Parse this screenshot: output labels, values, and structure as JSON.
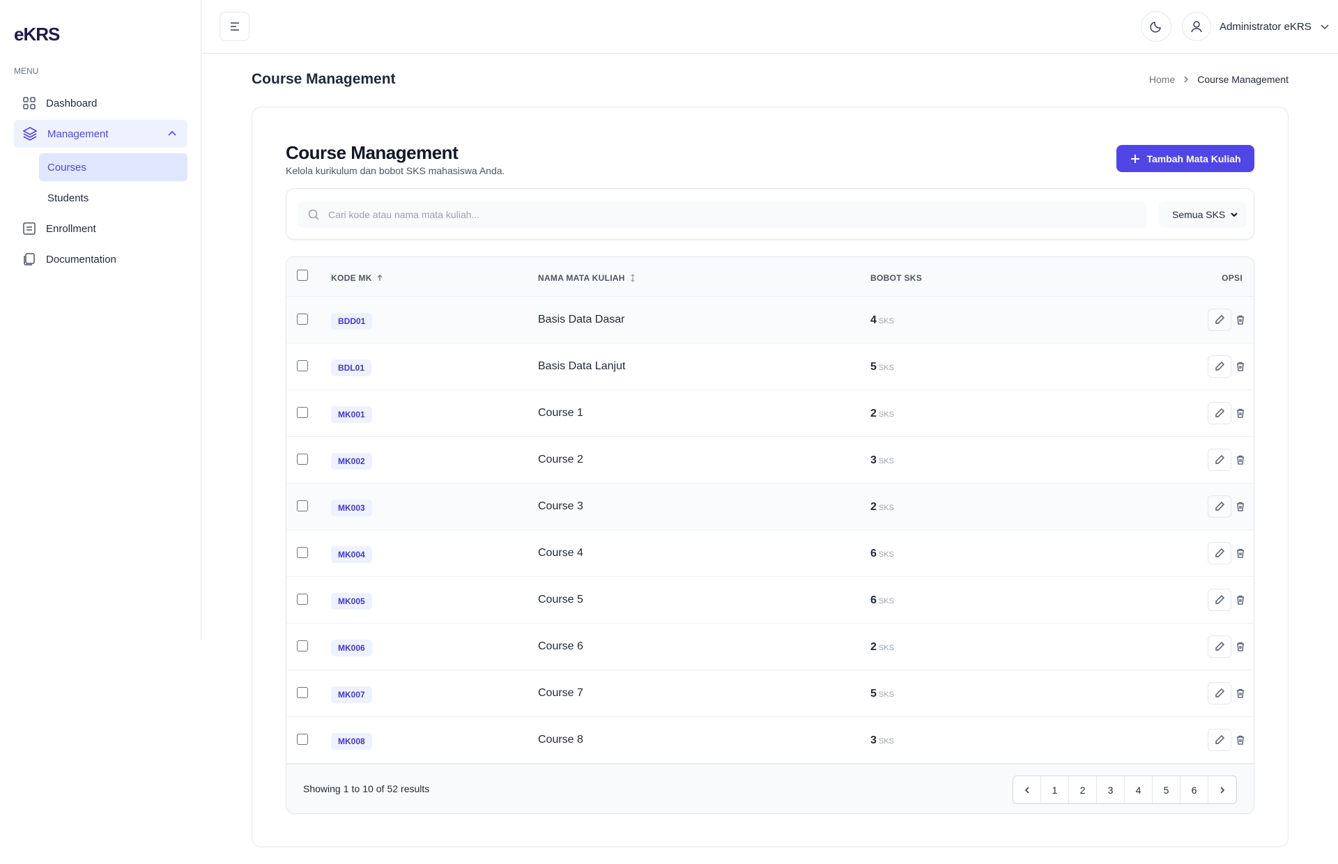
{
  "brand": "eKRS",
  "sidebar": {
    "menu_label": "MENU",
    "items": [
      {
        "label": "Dashboard"
      },
      {
        "label": "Management",
        "children": [
          {
            "label": "Courses"
          },
          {
            "label": "Students"
          }
        ]
      },
      {
        "label": "Enrollment"
      },
      {
        "label": "Documentation"
      }
    ]
  },
  "topbar": {
    "user": "Administrator eKRS"
  },
  "page": {
    "title": "Course Management",
    "breadcrumb": [
      "Home",
      "Course Management"
    ]
  },
  "card": {
    "title": "Course Management",
    "subtitle": "Kelola kurikulum dan bobot SKS mahasiswa Anda.",
    "add_button": "Tambah Mata Kuliah",
    "search_placeholder": "Cari kode atau nama mata kuliah...",
    "filter": "Semua SKS"
  },
  "table": {
    "headers": [
      "KODE MK",
      "NAMA MATA KULIAH",
      "BOBOT SKS",
      "OPSI"
    ],
    "sks_unit": "SKS",
    "rows": [
      [
        "BDD01",
        "Basis Data Dasar",
        4
      ],
      [
        "BDL01",
        "Basis Data Lanjut",
        5
      ],
      [
        "MK001",
        "Course 1",
        2
      ],
      [
        "MK002",
        "Course 2",
        3
      ],
      [
        "MK003",
        "Course 3",
        2
      ],
      [
        "MK004",
        "Course 4",
        6
      ],
      [
        "MK005",
        "Course 5",
        6
      ],
      [
        "MK006",
        "Course 6",
        2
      ],
      [
        "MK007",
        "Course 7",
        5
      ],
      [
        "MK008",
        "Course 8",
        3
      ]
    ]
  },
  "pagination": {
    "prefix": "Showing",
    "from": 1,
    "to_label": "to",
    "to": 10,
    "of_label": "of",
    "total": 52,
    "suffix": "results",
    "pages": [
      1,
      2,
      3,
      4,
      5,
      6
    ]
  }
}
